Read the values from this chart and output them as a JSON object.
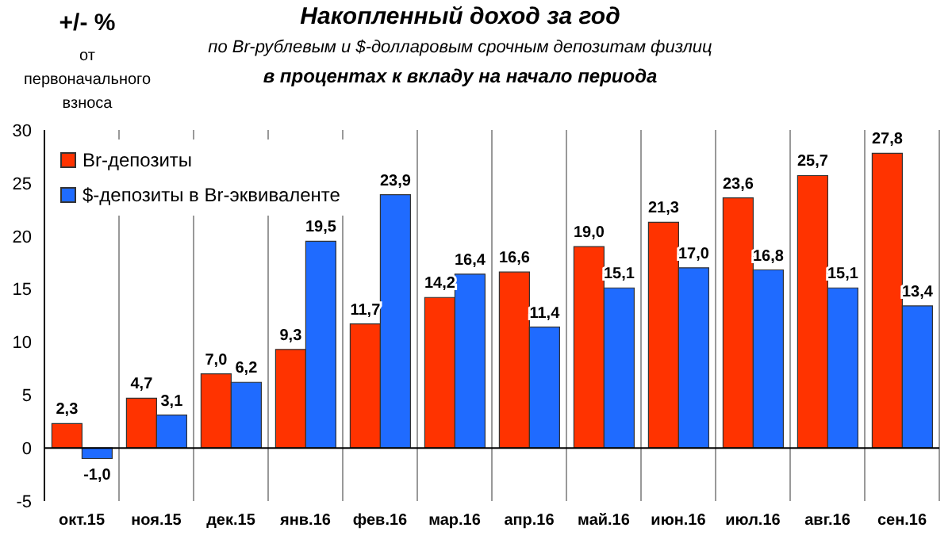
{
  "chart_data": {
    "type": "bar",
    "title": "Накопленный  доход за год",
    "subtitle": "по Br-рублевым и $-долларовым  срочным депозитам физлиц",
    "annotations": [
      "в процентах к вкладу на начало периода",
      "+/- %",
      "от первоначального взноса"
    ],
    "categories": [
      "окт.15",
      "ноя.15",
      "дек.15",
      "янв.16",
      "фев.16",
      "мар.16",
      "апр.16",
      "май.16",
      "июн.16",
      "июл.16",
      "авг.16",
      "сен.16"
    ],
    "series": [
      {
        "name": "Br-депозиты",
        "color": "#ff3300",
        "values": [
          2.3,
          4.7,
          7.0,
          9.3,
          11.7,
          14.2,
          16.6,
          19.0,
          21.3,
          23.6,
          25.7,
          27.8
        ],
        "value_labels": [
          "2,3",
          "4,7",
          "7,0",
          "9,3",
          "11,7",
          "14,2",
          "16,6",
          "19,0",
          "21,3",
          "23,6",
          "25,7",
          "27,8"
        ]
      },
      {
        "name": "$-депозиты в Br-эквиваленте",
        "color": "#1f6bff",
        "values": [
          -1.0,
          3.1,
          6.2,
          19.5,
          23.9,
          16.4,
          11.4,
          15.1,
          17.0,
          16.8,
          15.1,
          13.4
        ],
        "value_labels": [
          "-1,0",
          "3,1",
          "6,2",
          "19,5",
          "23,9",
          "16,4",
          "11,4",
          "15,1",
          "17,0",
          "16,8",
          "15,1",
          "13,4"
        ]
      }
    ],
    "ylim": [
      -5,
      30
    ],
    "yticks": [
      -5,
      0,
      5,
      10,
      15,
      20,
      25,
      30
    ],
    "grid": "x",
    "legend": "top left"
  }
}
